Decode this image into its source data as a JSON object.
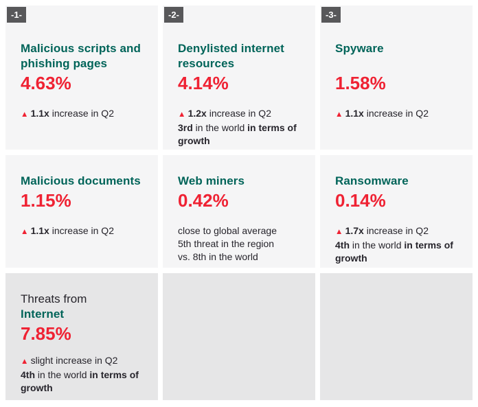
{
  "colors": {
    "page_bg": "#ffffff",
    "card_bg": "#f5f5f6",
    "card_bg_dark": "#e6e6e7",
    "badge_bg": "#58585a",
    "badge_text": "#ffffff",
    "title_teal": "#006459",
    "percent_red": "#ef2233",
    "body_text": "#26242b"
  },
  "chart_data": {
    "type": "table",
    "title": "Threat statistics with -1- -2- -3- ranking badges, Q2",
    "categories": [
      "Malicious scripts and phishing pages",
      "Denylisted internet resources",
      "Spyware",
      "Malicious documents",
      "Web miners",
      "Ransomware",
      "Threats from Internet"
    ],
    "values": [
      4.63,
      4.14,
      1.58,
      1.15,
      0.42,
      0.14,
      7.85
    ],
    "annotations": [
      "1.1x increase in Q2",
      "1.2x increase in Q2; 3rd in the world in terms of growth",
      "1.1x increase in Q2",
      "1.1x increase in Q2",
      "close to global average; 5th threat in the region vs. 8th in the world",
      "1.7x increase in Q2; 4th in the world in terms of growth",
      "slight increase in Q2; 4th in the world in terms of growth"
    ]
  },
  "cards": [
    {
      "badge": "-1-",
      "title": "Malicious scripts and phishing pages",
      "percent": "4.63%",
      "notes": [
        {
          "segments": [
            {
              "text": "▲ ",
              "style": "tri"
            },
            {
              "text": "1.1x",
              "style": "bold"
            },
            {
              "text": " increase in Q2",
              "style": "plain"
            }
          ]
        }
      ]
    },
    {
      "badge": "-2-",
      "title": "Denylisted internet resources",
      "percent": "4.14%",
      "notes": [
        {
          "segments": [
            {
              "text": "▲ ",
              "style": "tri"
            },
            {
              "text": "1.2x",
              "style": "bold"
            },
            {
              "text": " increase in Q2",
              "style": "plain"
            }
          ]
        },
        {
          "segments": [
            {
              "text": "3rd",
              "style": "bold"
            },
            {
              "text": " in the world ",
              "style": "plain"
            },
            {
              "text": "in terms of growth",
              "style": "bold"
            }
          ]
        }
      ]
    },
    {
      "badge": "-3-",
      "title": "Spyware",
      "percent": "1.58%",
      "notes": [
        {
          "segments": [
            {
              "text": "▲ ",
              "style": "tri"
            },
            {
              "text": "1.1x",
              "style": "bold"
            },
            {
              "text": " increase in Q2",
              "style": "plain"
            }
          ]
        }
      ]
    },
    {
      "title": "Malicious documents",
      "percent": "1.15%",
      "notes": [
        {
          "segments": [
            {
              "text": "▲ ",
              "style": "tri"
            },
            {
              "text": "1.1x",
              "style": "bold"
            },
            {
              "text": " increase in Q2",
              "style": "plain"
            }
          ]
        }
      ]
    },
    {
      "title": "Web miners",
      "percent": "0.42%",
      "notes": [
        {
          "segments": [
            {
              "text": "close to global average",
              "style": "plain"
            }
          ]
        },
        {
          "segments": [
            {
              "text": "5th threat in the region",
              "style": "plain"
            }
          ]
        },
        {
          "segments": [
            {
              "text": "vs. 8th in the world",
              "style": "plain"
            }
          ]
        }
      ]
    },
    {
      "title": "Ransomware",
      "percent": "0.14%",
      "notes": [
        {
          "segments": [
            {
              "text": "▲ ",
              "style": "tri"
            },
            {
              "text": "1.7x",
              "style": "bold"
            },
            {
              "text": " increase in Q2",
              "style": "plain"
            }
          ]
        },
        {
          "segments": [
            {
              "text": "4th",
              "style": "bold"
            },
            {
              "text": " in the world ",
              "style": "plain"
            },
            {
              "text": "in terms of growth",
              "style": "bold"
            }
          ]
        }
      ]
    },
    {
      "pretitle": "Threats from",
      "title": "Internet",
      "percent": "7.85%",
      "notes": [
        {
          "segments": [
            {
              "text": "▲ ",
              "style": "tri"
            },
            {
              "text": "slight increase in Q2",
              "style": "plain"
            }
          ]
        },
        {
          "segments": [
            {
              "text": "4th",
              "style": "bold"
            },
            {
              "text": " in the world ",
              "style": "plain"
            },
            {
              "text": "in terms of growth",
              "style": "bold"
            }
          ]
        }
      ]
    }
  ]
}
